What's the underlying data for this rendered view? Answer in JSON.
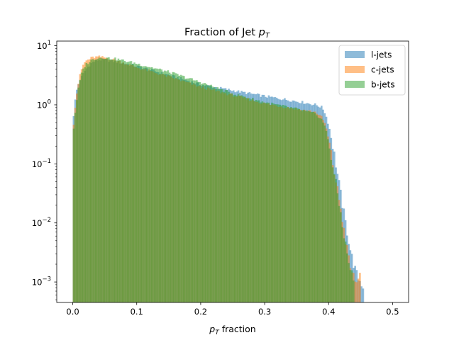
{
  "chart_data": {
    "type": "histogram",
    "title": "Fraction of Jet p_T",
    "title_parts": {
      "prefix": "Fraction of Jet ",
      "var": "p",
      "sub": "T"
    },
    "xlabel_parts": {
      "var": "p",
      "sub": "T",
      "suffix": " fraction"
    },
    "xlim": [
      -0.025,
      0.525
    ],
    "ylim": [
      0.00045,
      12
    ],
    "yscale": "log",
    "bin_width": 0.0025,
    "x_ticks": [
      {
        "value": 0.0,
        "label": "0.0"
      },
      {
        "value": 0.1,
        "label": "0.1"
      },
      {
        "value": 0.2,
        "label": "0.2"
      },
      {
        "value": 0.3,
        "label": "0.3"
      },
      {
        "value": 0.4,
        "label": "0.4"
      },
      {
        "value": 0.5,
        "label": "0.5"
      }
    ],
    "y_ticks": [
      {
        "value": 0.001,
        "label": "10",
        "exp": "−3"
      },
      {
        "value": 0.01,
        "label": "10",
        "exp": "−2"
      },
      {
        "value": 0.1,
        "label": "10",
        "exp": "−1"
      },
      {
        "value": 1,
        "label": "10",
        "exp": "0"
      },
      {
        "value": 10,
        "label": "10",
        "exp": "1"
      }
    ],
    "legend_position": "top-right",
    "series": [
      {
        "name": "l-jets",
        "color": "#1f77b4",
        "alpha": 0.5,
        "profile": [
          [
            0.0,
            0.5
          ],
          [
            0.005,
            1.6
          ],
          [
            0.01,
            2.5
          ],
          [
            0.02,
            4.0
          ],
          [
            0.03,
            5.2
          ],
          [
            0.04,
            5.8
          ],
          [
            0.05,
            5.8
          ],
          [
            0.07,
            5.3
          ],
          [
            0.1,
            4.5
          ],
          [
            0.15,
            3.2
          ],
          [
            0.2,
            2.2
          ],
          [
            0.25,
            1.75
          ],
          [
            0.3,
            1.4
          ],
          [
            0.35,
            1.15
          ],
          [
            0.38,
            1.0
          ],
          [
            0.39,
            0.9
          ],
          [
            0.395,
            0.7
          ],
          [
            0.4,
            0.45
          ],
          [
            0.405,
            0.25
          ],
          [
            0.41,
            0.12
          ],
          [
            0.415,
            0.055
          ],
          [
            0.42,
            0.025
          ],
          [
            0.425,
            0.012
          ],
          [
            0.43,
            0.006
          ],
          [
            0.435,
            0.003
          ],
          [
            0.44,
            0.0018
          ],
          [
            0.445,
            0.0012
          ],
          [
            0.45,
            0.001
          ],
          [
            0.455,
            0.0008
          ]
        ]
      },
      {
        "name": "c-jets",
        "color": "#ff7f0e",
        "alpha": 0.5,
        "profile": [
          [
            0.0,
            0.35
          ],
          [
            0.005,
            1.3
          ],
          [
            0.01,
            2.8
          ],
          [
            0.015,
            4.5
          ],
          [
            0.02,
            5.5
          ],
          [
            0.03,
            6.3
          ],
          [
            0.04,
            6.5
          ],
          [
            0.05,
            6.3
          ],
          [
            0.07,
            5.6
          ],
          [
            0.1,
            4.3
          ],
          [
            0.15,
            3.0
          ],
          [
            0.2,
            2.0
          ],
          [
            0.25,
            1.45
          ],
          [
            0.3,
            1.05
          ],
          [
            0.35,
            0.85
          ],
          [
            0.38,
            0.75
          ],
          [
            0.39,
            0.6
          ],
          [
            0.395,
            0.45
          ],
          [
            0.4,
            0.25
          ],
          [
            0.405,
            0.12
          ],
          [
            0.41,
            0.06
          ],
          [
            0.415,
            0.03
          ],
          [
            0.42,
            0.015
          ],
          [
            0.425,
            0.006
          ],
          [
            0.43,
            0.003
          ],
          [
            0.435,
            0.0015
          ],
          [
            0.445,
            0.0009
          ],
          [
            0.45,
            0.002
          ]
        ]
      },
      {
        "name": "b-jets",
        "color": "#2ca02c",
        "alpha": 0.5,
        "profile": [
          [
            0.0,
            0.3
          ],
          [
            0.005,
            1.0
          ],
          [
            0.01,
            2.3
          ],
          [
            0.015,
            3.8
          ],
          [
            0.02,
            4.8
          ],
          [
            0.03,
            5.8
          ],
          [
            0.04,
            6.3
          ],
          [
            0.05,
            6.3
          ],
          [
            0.07,
            5.9
          ],
          [
            0.1,
            5.0
          ],
          [
            0.15,
            3.6
          ],
          [
            0.2,
            2.4
          ],
          [
            0.25,
            1.55
          ],
          [
            0.3,
            1.1
          ],
          [
            0.35,
            0.85
          ],
          [
            0.38,
            0.7
          ],
          [
            0.39,
            0.55
          ],
          [
            0.395,
            0.4
          ],
          [
            0.4,
            0.23
          ],
          [
            0.405,
            0.11
          ],
          [
            0.41,
            0.055
          ],
          [
            0.415,
            0.025
          ],
          [
            0.42,
            0.012
          ],
          [
            0.425,
            0.005
          ],
          [
            0.43,
            0.0025
          ],
          [
            0.435,
            0.0015
          ],
          [
            0.44,
            0.001
          ]
        ]
      }
    ]
  }
}
